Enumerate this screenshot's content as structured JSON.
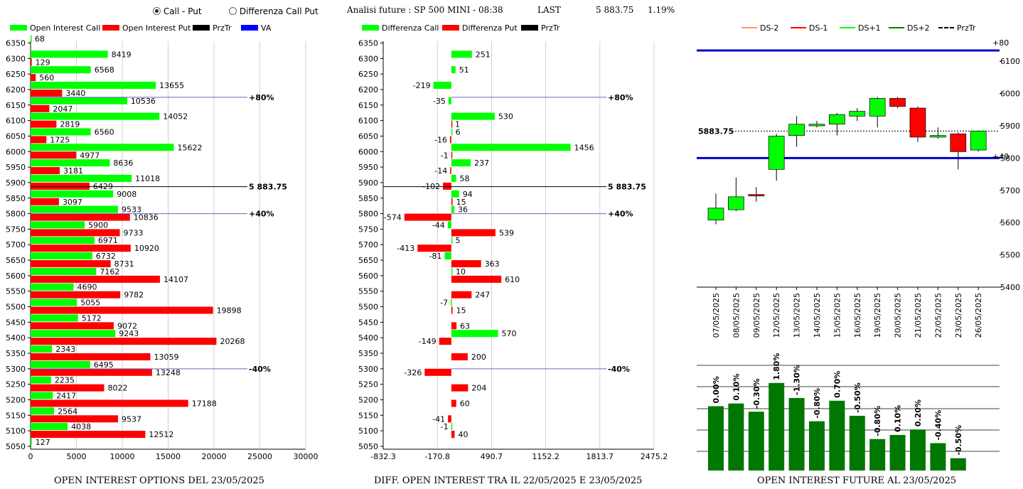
{
  "controls": {
    "radio_call_put": "Call - Put",
    "radio_diff": "Differenza Call Put",
    "analisi": "Analisi future : SP 500 MINI - 08:38",
    "last_label": "LAST",
    "last_value": "5 883.75",
    "last_change": "1.19%"
  },
  "legends": {
    "left": [
      "Open Interest Call",
      "Open Interest Put",
      "PrzTr",
      "VA"
    ],
    "middle": [
      "Differenza Call",
      "Differenza Put",
      "PrzTr"
    ],
    "right": [
      "DS-2",
      "DS-1",
      "DS+1",
      "DS+2",
      "PrzTr"
    ]
  },
  "captions": {
    "left": "OPEN INTEREST OPTIONS DEL 23/05/2025",
    "middle": "DIFF. OPEN INTEREST TRA IL 22/05/2025 E 23/05/2025",
    "right": "OPEN INTEREST FUTURE AL 23/05/2025"
  },
  "colors": {
    "call": "#00ff00",
    "put": "#ff0000",
    "va": "#0000cc",
    "candle_up": "#00ff00",
    "candle_down": "#ff0000",
    "oi_bar": "#007700"
  },
  "chart_data": [
    {
      "type": "bar",
      "orientation": "horizontal",
      "title": "OPEN INTEREST OPTIONS DEL 23/05/2025",
      "categories": [
        6350,
        6300,
        6250,
        6200,
        6150,
        6100,
        6050,
        6000,
        5950,
        5900,
        5850,
        5800,
        5750,
        5700,
        5650,
        5600,
        5550,
        5500,
        5450,
        5400,
        5350,
        5300,
        5250,
        5200,
        5150,
        5100,
        5050
      ],
      "series": [
        {
          "name": "Open Interest Call",
          "values": [
            68,
            8419,
            6568,
            13655,
            10536,
            14052,
            6560,
            15622,
            8636,
            11018,
            9008,
            9533,
            5900,
            6971,
            6732,
            7162,
            4690,
            5055,
            5172,
            9243,
            2343,
            6495,
            2235,
            2417,
            2564,
            4038,
            127
          ]
        },
        {
          "name": "Open Interest Put",
          "values": [
            null,
            129,
            560,
            3440,
            2047,
            2819,
            1725,
            4977,
            3181,
            6429,
            3097,
            10836,
            9733,
            10920,
            8731,
            14107,
            9782,
            19898,
            9072,
            20268,
            13059,
            13248,
            8022,
            17188,
            9537,
            12512,
            null
          ]
        }
      ],
      "xlim": [
        0,
        30000
      ],
      "xticks": [
        "0",
        "5000",
        "10000",
        "15000",
        "20000",
        "25000",
        "30000"
      ],
      "annotations": [
        {
          "level": 6175,
          "label": "+80%",
          "color": "#0000cc"
        },
        {
          "level": 5887,
          "label": "5 883.75",
          "color": "#000000"
        },
        {
          "level": 5800,
          "label": "+40%",
          "color": "#0000cc"
        },
        {
          "level": 5300,
          "label": "-40%",
          "color": "#0000cc"
        }
      ]
    },
    {
      "type": "bar",
      "orientation": "horizontal",
      "title": "DIFF. OPEN INTEREST TRA IL 22/05/2025 E 23/05/2025",
      "categories": [
        6350,
        6300,
        6250,
        6200,
        6150,
        6100,
        6050,
        6000,
        5950,
        5900,
        5850,
        5800,
        5750,
        5700,
        5650,
        5600,
        5550,
        5500,
        5450,
        5400,
        5350,
        5300,
        5250,
        5200,
        5150,
        5100,
        5050
      ],
      "series": [
        {
          "name": "Differenza Call",
          "values": [
            null,
            251,
            51,
            -219,
            -35,
            530,
            6,
            1456,
            237,
            58,
            94,
            36,
            -44,
            5,
            -81,
            10,
            null,
            -7,
            null,
            570,
            null,
            null,
            null,
            null,
            null,
            -1,
            null
          ]
        },
        {
          "name": "Differenza Put",
          "values": [
            null,
            null,
            null,
            null,
            null,
            1,
            -16,
            -1,
            -14,
            -102,
            15,
            -574,
            539,
            -413,
            363,
            610,
            247,
            15,
            63,
            -149,
            200,
            -326,
            204,
            60,
            -41,
            40,
            null
          ]
        }
      ],
      "xlim": [
        -832.3,
        2475.2
      ],
      "xticks": [
        "-832.3",
        "-170.8",
        "490.7",
        "1152.2",
        "1813.7",
        "2475.2"
      ],
      "annotations": [
        {
          "level": 6175,
          "label": "+80%",
          "color": "#0000cc"
        },
        {
          "level": 5887,
          "label": "5 883.75",
          "color": "#000000"
        },
        {
          "level": 5800,
          "label": "+40%",
          "color": "#0000cc"
        },
        {
          "level": 5300,
          "label": "-40%",
          "color": "#0000cc"
        }
      ]
    },
    {
      "type": "candlestick",
      "categories": [
        "07/05/2025",
        "08/05/2025",
        "09/05/2025",
        "12/05/2025",
        "13/05/2025",
        "14/05/2025",
        "15/05/2025",
        "16/05/2025",
        "19/05/2025",
        "20/05/2025",
        "21/05/2025",
        "22/05/2025",
        "23/05/2025",
        "26/05/2025"
      ],
      "ohlc": [
        [
          5608,
          5690,
          5595,
          5645
        ],
        [
          5640,
          5740,
          5635,
          5680
        ],
        [
          5687,
          5710,
          5665,
          5685
        ],
        [
          5765,
          5875,
          5730,
          5868
        ],
        [
          5870,
          5930,
          5835,
          5905
        ],
        [
          5900,
          5915,
          5895,
          5905
        ],
        [
          5905,
          5940,
          5870,
          5935
        ],
        [
          5930,
          5955,
          5915,
          5945
        ],
        [
          5930,
          5990,
          5895,
          5985
        ],
        [
          5985,
          5990,
          5955,
          5960
        ],
        [
          5955,
          5960,
          5850,
          5865
        ],
        [
          5865,
          5895,
          5860,
          5870
        ],
        [
          5875,
          5880,
          5765,
          5820
        ],
        [
          5825,
          5886,
          5820,
          5884
        ]
      ],
      "ylim": [
        5400,
        6160
      ],
      "yticks": [
        "5400",
        "5500",
        "5600",
        "5700",
        "5800",
        "5900",
        "6000",
        "6100"
      ],
      "przTr": 5883.75,
      "price_label": "5883.75",
      "va_levels": [
        5800,
        6175
      ],
      "right_labels": [
        "+40",
        "+80"
      ]
    },
    {
      "type": "bar",
      "title": "OPEN INTEREST FUTURE AL 23/05/2025",
      "categories": [
        "07/05/2025",
        "08/05/2025",
        "09/05/2025",
        "12/05/2025",
        "13/05/2025",
        "14/05/2025",
        "15/05/2025",
        "16/05/2025",
        "19/05/2025",
        "20/05/2025",
        "21/05/2025",
        "22/05/2025",
        "23/05/2025"
      ],
      "values": [
        2.35,
        2.45,
        2.15,
        3.2,
        2.65,
        1.8,
        2.55,
        2.0,
        1.15,
        1.3,
        1.5,
        1.0,
        0.45
      ],
      "labels": [
        "0.00%",
        "0.10%",
        "-0.30%",
        "1.80%",
        "-1.30%",
        "-0.80%",
        "0.70%",
        "-0.50%",
        "-0.80%",
        "0.10%",
        "0.20%",
        "-0.40%",
        "-0.50%"
      ],
      "ylim": [
        0,
        4
      ]
    }
  ]
}
